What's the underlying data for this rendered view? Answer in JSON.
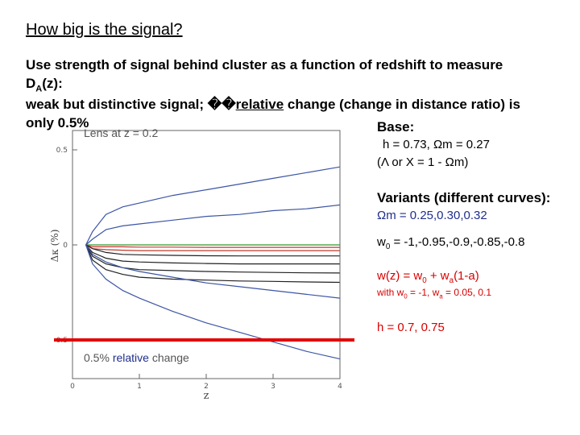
{
  "slide": {
    "title": "How big is the signal?",
    "line1": "Use strength of signal behind cluster as a function of redshift to measure",
    "line2_main": "D",
    "line2_sub": "A",
    "line2_rest": "(z):",
    "line3_pre": "weak but distinctive signal; ��",
    "line3_rel": "relative",
    "line3_post": " change (change in distance ratio) is",
    "line4": "only 0.5%"
  },
  "right": {
    "base_label": "Base:",
    "base_h": "h = 0.73, Ωm = 0.27",
    "base_lambda": "(Λ or X = 1 - Ωm)",
    "variants_label": "Variants (different curves):",
    "variants_omega": "Ωm = 0.25,0.30,0.32",
    "w0_main": "w",
    "w0_sub": "0",
    "w0_rest": " = -1,-0.95,-0.9,-0.85,-0.8",
    "wz_pre": "w(z) = w",
    "wz_sub0": "0",
    "wz_mid": " + w",
    "wz_suba": "a",
    "wz_post": "(1-a)",
    "with_pre": "with w",
    "with_sub0": "0",
    "with_mid": " = -1, w",
    "with_suba": "a",
    "with_post": " = 0.05, 0.1",
    "h_variants": "h = 0.7, 0.75"
  },
  "chart_data": {
    "type": "line",
    "annotation_top": "Lens at z = 0.2",
    "annotation_bottom_pre": "0.5% ",
    "annotation_bottom_rel": "relative",
    "annotation_bottom_post": " change",
    "xlabel": "z",
    "ylabel": "Δκ (%)",
    "xlim": [
      0,
      4
    ],
    "ylim": [
      -0.5,
      0.5
    ],
    "xticks": [
      0,
      1,
      2,
      3,
      4
    ],
    "yticks": [
      -0.5,
      0,
      0.5
    ],
    "threshold_y": -0.5,
    "x": [
      0.2,
      0.3,
      0.5,
      0.75,
      1,
      1.5,
      2,
      2.5,
      3,
      3.5,
      4
    ],
    "series": [
      {
        "color": "#3c55a5",
        "values": [
          0,
          0.07,
          0.16,
          0.2,
          0.22,
          0.26,
          0.29,
          0.32,
          0.35,
          0.38,
          0.41
        ]
      },
      {
        "color": "#3c55a5",
        "values": [
          0,
          0.03,
          0.08,
          0.1,
          0.11,
          0.13,
          0.15,
          0.16,
          0.18,
          0.19,
          0.21
        ]
      },
      {
        "color": "#2a9a2a",
        "values": [
          0,
          0,
          0,
          0,
          0,
          0,
          0,
          0,
          0,
          0,
          0
        ]
      },
      {
        "color": "#c0392b",
        "values": [
          0,
          -0.01,
          -0.01,
          -0.01,
          -0.012,
          -0.012,
          -0.013,
          -0.013,
          -0.013,
          -0.013,
          -0.013
        ]
      },
      {
        "color": "#c0392b",
        "values": [
          0,
          -0.02,
          -0.025,
          -0.028,
          -0.03,
          -0.03,
          -0.03,
          -0.03,
          -0.03,
          -0.03,
          -0.03
        ]
      },
      {
        "color": "#222222",
        "values": [
          0,
          -0.02,
          -0.04,
          -0.05,
          -0.052,
          -0.055,
          -0.057,
          -0.058,
          -0.058,
          -0.058,
          -0.058
        ]
      },
      {
        "color": "#222222",
        "values": [
          0,
          -0.04,
          -0.07,
          -0.085,
          -0.09,
          -0.095,
          -0.098,
          -0.1,
          -0.1,
          -0.1,
          -0.1
        ]
      },
      {
        "color": "#222222",
        "values": [
          0,
          -0.06,
          -0.1,
          -0.12,
          -0.13,
          -0.135,
          -0.14,
          -0.143,
          -0.145,
          -0.147,
          -0.148
        ]
      },
      {
        "color": "#222222",
        "values": [
          0,
          -0.08,
          -0.13,
          -0.155,
          -0.17,
          -0.18,
          -0.185,
          -0.19,
          -0.192,
          -0.195,
          -0.197
        ]
      },
      {
        "color": "#3c55a5",
        "values": [
          0,
          -0.05,
          -0.09,
          -0.12,
          -0.14,
          -0.17,
          -0.2,
          -0.22,
          -0.24,
          -0.26,
          -0.28
        ]
      },
      {
        "color": "#3c55a5",
        "values": [
          0,
          -0.1,
          -0.18,
          -0.24,
          -0.28,
          -0.35,
          -0.41,
          -0.46,
          -0.51,
          -0.56,
          -0.6
        ]
      }
    ]
  }
}
